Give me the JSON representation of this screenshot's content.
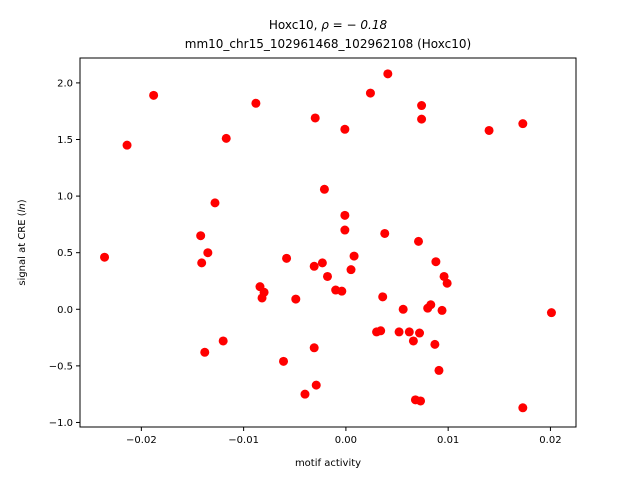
{
  "chart_data": {
    "type": "scatter",
    "title_line1_prefix": "Hoxc10, ",
    "title_line1_rho": "ρ = − 0.18",
    "title_line2": "mm10_chr15_102961468_102962108 (Hoxc10)",
    "xlabel": "motif activity",
    "ylabel_prefix": "signal at CRE (",
    "ylabel_italic": "ln",
    "ylabel_suffix": ")",
    "xlim": [
      -0.026,
      0.0225
    ],
    "ylim": [
      -1.04,
      2.22
    ],
    "xticks": [
      -0.02,
      -0.01,
      0.0,
      0.01,
      0.02
    ],
    "xtick_labels": [
      "−0.02",
      "−0.01",
      "0.00",
      "0.01",
      "0.02"
    ],
    "yticks": [
      -1.0,
      -0.5,
      0.0,
      0.5,
      1.0,
      1.5,
      2.0
    ],
    "ytick_labels": [
      "−1.0",
      "−0.5",
      "0.0",
      "0.5",
      "1.0",
      "1.5",
      "2.0"
    ],
    "grid": false,
    "marker_color": "#ff0000",
    "points": [
      {
        "x": -0.0236,
        "y": 0.46
      },
      {
        "x": -0.0214,
        "y": 1.45
      },
      {
        "x": -0.0188,
        "y": 1.89
      },
      {
        "x": -0.0142,
        "y": 0.65
      },
      {
        "x": -0.0141,
        "y": 0.41
      },
      {
        "x": -0.0138,
        "y": -0.38
      },
      {
        "x": -0.0135,
        "y": 0.5
      },
      {
        "x": -0.0128,
        "y": 0.94
      },
      {
        "x": -0.012,
        "y": -0.28
      },
      {
        "x": -0.0117,
        "y": 1.51
      },
      {
        "x": -0.0088,
        "y": 1.82
      },
      {
        "x": -0.0084,
        "y": 0.2
      },
      {
        "x": -0.0082,
        "y": 0.1
      },
      {
        "x": -0.008,
        "y": 0.15
      },
      {
        "x": -0.0061,
        "y": -0.46
      },
      {
        "x": -0.0058,
        "y": 0.45
      },
      {
        "x": -0.0049,
        "y": 0.09
      },
      {
        "x": -0.004,
        "y": -0.75
      },
      {
        "x": -0.0031,
        "y": 0.38
      },
      {
        "x": -0.0031,
        "y": -0.34
      },
      {
        "x": -0.003,
        "y": 1.69
      },
      {
        "x": -0.0029,
        "y": -0.67
      },
      {
        "x": -0.0023,
        "y": 0.41
      },
      {
        "x": -0.0021,
        "y": 1.06
      },
      {
        "x": -0.0018,
        "y": 0.29
      },
      {
        "x": -0.001,
        "y": 0.17
      },
      {
        "x": -0.0004,
        "y": 0.16
      },
      {
        "x": -0.0001,
        "y": 1.59
      },
      {
        "x": -0.0001,
        "y": 0.83
      },
      {
        "x": -0.0001,
        "y": 0.7
      },
      {
        "x": 0.0005,
        "y": 0.35
      },
      {
        "x": 0.0008,
        "y": 0.47
      },
      {
        "x": 0.0024,
        "y": 1.91
      },
      {
        "x": 0.003,
        "y": -0.2
      },
      {
        "x": 0.0034,
        "y": -0.19
      },
      {
        "x": 0.0036,
        "y": 0.11
      },
      {
        "x": 0.0038,
        "y": 0.67
      },
      {
        "x": 0.0041,
        "y": 2.08
      },
      {
        "x": 0.0052,
        "y": -0.2
      },
      {
        "x": 0.0056,
        "y": 0.0
      },
      {
        "x": 0.0062,
        "y": -0.2
      },
      {
        "x": 0.0066,
        "y": -0.28
      },
      {
        "x": 0.0068,
        "y": -0.8
      },
      {
        "x": 0.0071,
        "y": 0.6
      },
      {
        "x": 0.0072,
        "y": -0.21
      },
      {
        "x": 0.0073,
        "y": -0.81
      },
      {
        "x": 0.0074,
        "y": 1.8
      },
      {
        "x": 0.0074,
        "y": 1.68
      },
      {
        "x": 0.008,
        "y": 0.01
      },
      {
        "x": 0.0083,
        "y": 0.04
      },
      {
        "x": 0.0087,
        "y": -0.31
      },
      {
        "x": 0.0088,
        "y": 0.42
      },
      {
        "x": 0.0091,
        "y": -0.54
      },
      {
        "x": 0.0094,
        "y": -0.01
      },
      {
        "x": 0.0096,
        "y": 0.29
      },
      {
        "x": 0.0099,
        "y": 0.23
      },
      {
        "x": 0.014,
        "y": 1.58
      },
      {
        "x": 0.0173,
        "y": 1.64
      },
      {
        "x": 0.0173,
        "y": -0.87
      },
      {
        "x": 0.0201,
        "y": -0.03
      }
    ]
  }
}
